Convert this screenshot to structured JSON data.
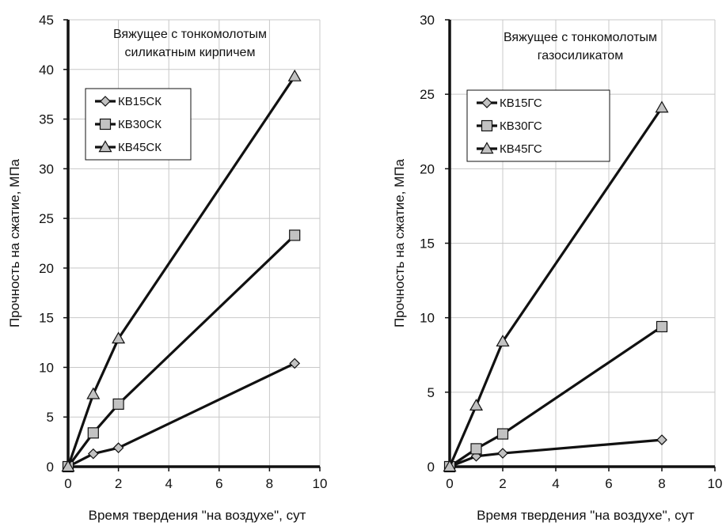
{
  "chart_data": [
    {
      "type": "line",
      "title_lines": [
        "Вяжущее с тонкомолотым",
        "силикатным кирпичем"
      ],
      "xlabel": "Время твердения \"на воздухе\", сут",
      "ylabel": "Прочность на сжатие, МПа",
      "xlim": [
        0,
        10
      ],
      "ylim": [
        0,
        45
      ],
      "xticks": [
        "0",
        "2",
        "4",
        "6",
        "8",
        "10"
      ],
      "yticks": [
        "0",
        "5",
        "10",
        "15",
        "20",
        "25",
        "30",
        "35",
        "40",
        "45"
      ],
      "grid": true,
      "legend_position": "upper-left",
      "series": [
        {
          "name": "КВ15СК",
          "marker": "diamond",
          "x": [
            0,
            1,
            2,
            9
          ],
          "y": [
            0,
            1.3,
            1.9,
            10.4
          ]
        },
        {
          "name": "КВ30СК",
          "marker": "square",
          "x": [
            0,
            1,
            2,
            9
          ],
          "y": [
            0,
            3.4,
            6.3,
            23.3
          ]
        },
        {
          "name": "КВ45СК",
          "marker": "triangle",
          "x": [
            0,
            1,
            2,
            9
          ],
          "y": [
            0,
            7.3,
            12.9,
            39.3
          ]
        }
      ]
    },
    {
      "type": "line",
      "title_lines": [
        "Вяжущее с тонкомолотым",
        "газосиликатом"
      ],
      "xlabel": "Время твердения \"на воздухе\", сут",
      "ylabel": "Прочность на сжатие, МПа",
      "xlim": [
        0,
        10
      ],
      "ylim": [
        0,
        30
      ],
      "xticks": [
        "0",
        "2",
        "4",
        "6",
        "8",
        "10"
      ],
      "yticks": [
        "0",
        "5",
        "10",
        "15",
        "20",
        "25",
        "30"
      ],
      "grid": true,
      "legend_position": "upper-left",
      "series": [
        {
          "name": "КВ15ГС",
          "marker": "diamond",
          "x": [
            0,
            1,
            2,
            8
          ],
          "y": [
            0,
            0.7,
            0.9,
            1.8
          ]
        },
        {
          "name": "КВ30ГС",
          "marker": "square",
          "x": [
            0,
            1,
            2,
            8
          ],
          "y": [
            0,
            1.2,
            2.2,
            9.4
          ]
        },
        {
          "name": "КВ45ГС",
          "marker": "triangle",
          "x": [
            0,
            1,
            2,
            8
          ],
          "y": [
            0,
            4.1,
            8.4,
            24.1
          ]
        }
      ]
    }
  ],
  "colors": {
    "line": "#111111",
    "marker_fill": "#c2c2c2",
    "grid": "#c8c8c8",
    "background": "#ffffff"
  }
}
